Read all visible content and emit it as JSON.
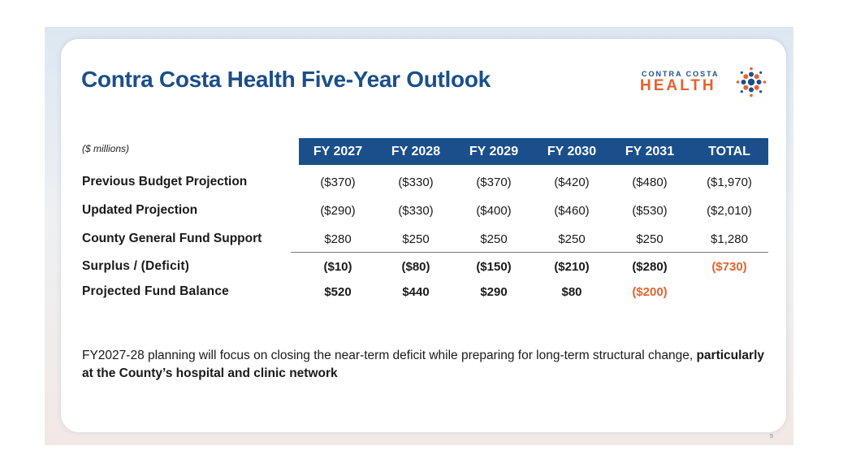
{
  "title": "Contra Costa Health Five-Year Outlook",
  "logo": {
    "top_text": "CONTRA COSTA",
    "main_text": "HEALTH",
    "icon": "sunburst-dots-icon",
    "colors": {
      "blue": "#1a4f8b",
      "orange": "#e8612c"
    }
  },
  "table": {
    "units_label": "($ millions)",
    "columns": [
      "FY 2027",
      "FY 2028",
      "FY 2029",
      "FY 2030",
      "FY 2031",
      "TOTAL"
    ],
    "rows": [
      {
        "label": "Previous Budget Projection",
        "values": [
          "($370)",
          "($330)",
          "($370)",
          "($420)",
          "($480)",
          "($1,970)"
        ]
      },
      {
        "label": "Updated Projection",
        "values": [
          "($290)",
          "($330)",
          "($400)",
          "($460)",
          "($530)",
          "($2,010)"
        ]
      },
      {
        "label": "County General Fund Support",
        "values": [
          "$280",
          "$250",
          "$250",
          "$250",
          "$250",
          "$1,280"
        ]
      },
      {
        "label": "Surplus / (Deficit)",
        "values": [
          "($10)",
          "($80)",
          "($150)",
          "($210)",
          "($280)",
          "($730)"
        ]
      },
      {
        "label": "Projected Fund Balance",
        "values": [
          "$520",
          "$440",
          "$290",
          "$80",
          "($200)",
          ""
        ]
      }
    ],
    "header_color": "#1a4f8b",
    "highlight_color": "#e8612c"
  },
  "note": {
    "text": "FY2027-28 planning will focus on closing the near-term deficit while preparing for long-term structural change, ",
    "bold_text": "particularly at the County’s hospital and clinic network"
  },
  "page_number": "9"
}
